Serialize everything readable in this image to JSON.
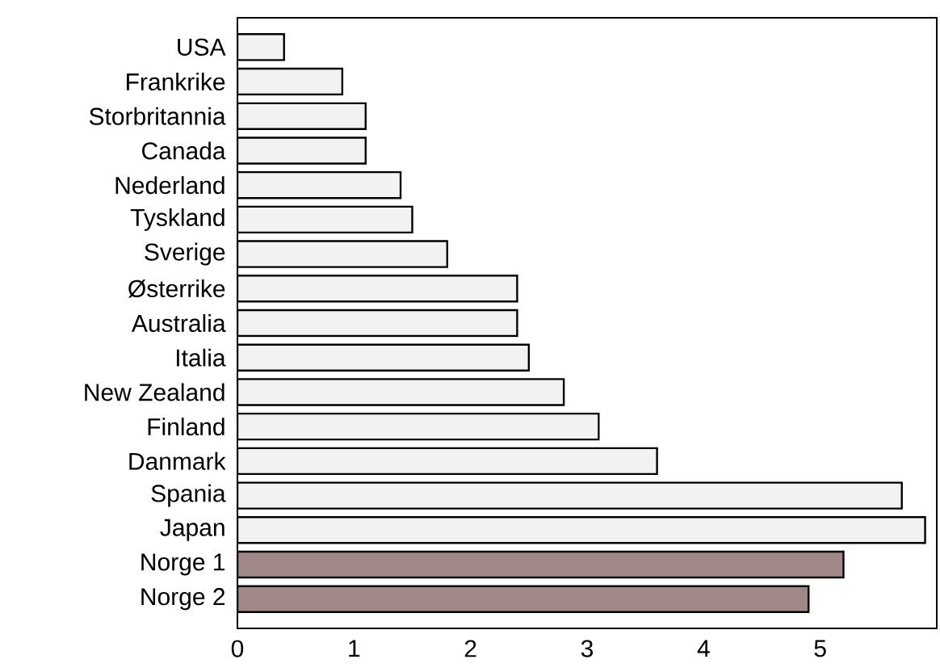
{
  "chart_data": {
    "type": "bar",
    "orientation": "horizontal",
    "categories": [
      "USA",
      "Frankrike",
      "Storbritannia",
      "Canada",
      "Nederland",
      "Tyskland",
      "Sverige",
      "Østerrike",
      "Australia",
      "Italia",
      "New Zealand",
      "Finland",
      "Danmark",
      "Spania",
      "Japan",
      "Norge 1",
      "Norge 2"
    ],
    "values": [
      0.4,
      0.9,
      1.1,
      1.1,
      1.4,
      1.5,
      1.8,
      2.4,
      2.4,
      2.5,
      2.8,
      3.1,
      3.6,
      5.7,
      5.9,
      5.2,
      4.9
    ],
    "colors": [
      "#f2f2f2",
      "#f2f2f2",
      "#f2f2f2",
      "#f2f2f2",
      "#f2f2f2",
      "#f2f2f2",
      "#f2f2f2",
      "#f2f2f2",
      "#f2f2f2",
      "#f2f2f2",
      "#f2f2f2",
      "#f2f2f2",
      "#f2f2f2",
      "#f2f2f2",
      "#f2f2f2",
      "#a08888",
      "#a08888"
    ],
    "xlim": [
      0,
      6.0
    ],
    "xticks": [
      0,
      1,
      2,
      3,
      4,
      5
    ],
    "grid": false
  }
}
